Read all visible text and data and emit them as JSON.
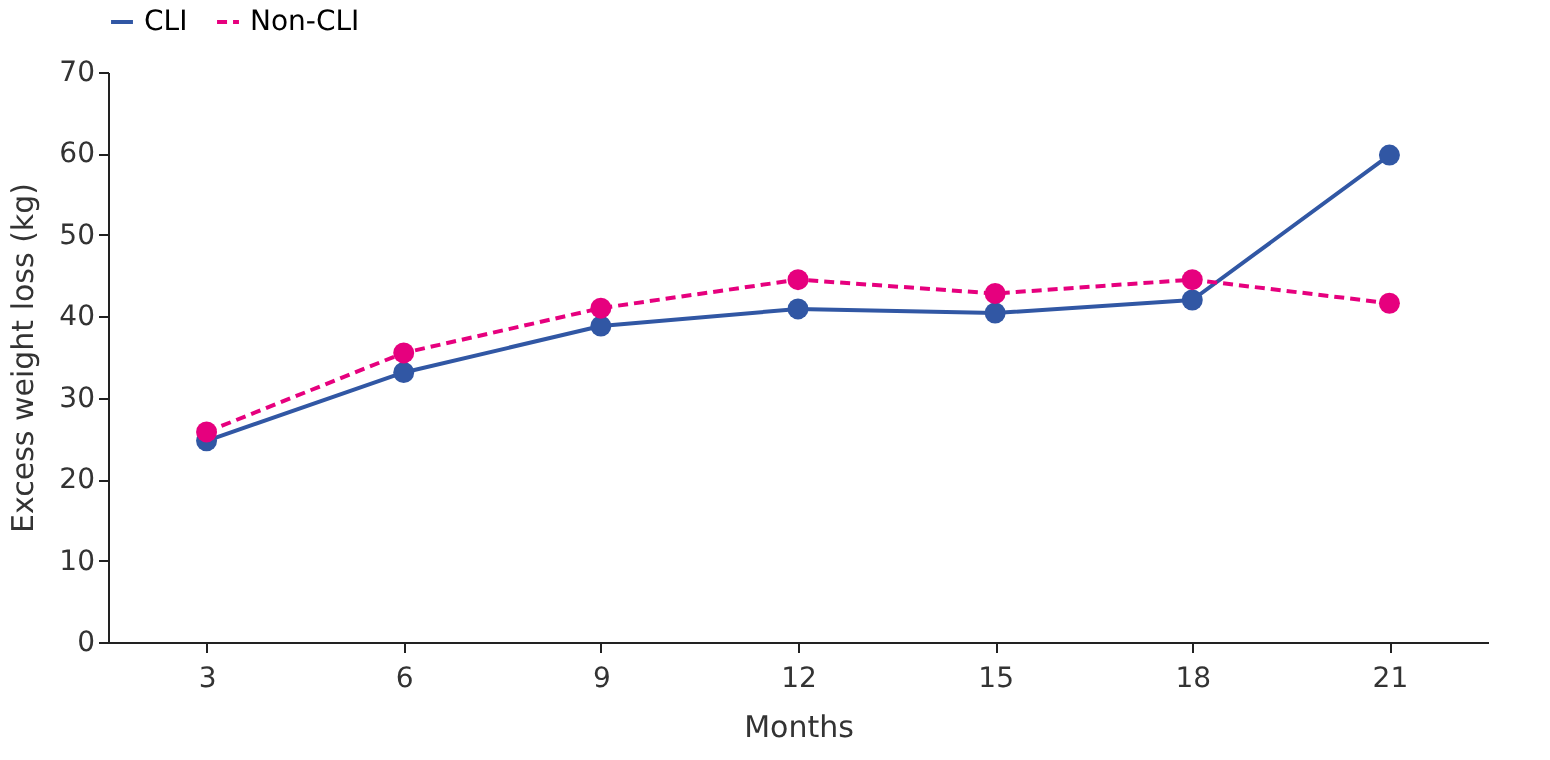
{
  "chart_data": {
    "type": "line",
    "xlabel": "Months",
    "ylabel": "Excess weight loss (kg)",
    "categories": [
      "3",
      "6",
      "9",
      "12",
      "15",
      "18",
      "21"
    ],
    "ylim": [
      0,
      70
    ],
    "yticks": [
      0,
      10,
      20,
      30,
      40,
      50,
      60,
      70
    ],
    "grid": false,
    "legend": "top",
    "marker": "circle",
    "series": [
      {
        "name": "CLI",
        "color": "#3157a4",
        "line_style": "solid",
        "values": [
          24.7,
          33.1,
          38.8,
          40.9,
          40.4,
          42.0,
          59.8
        ]
      },
      {
        "name": "Non-CLI",
        "color": "#e6007e",
        "line_style": "dashed",
        "values": [
          25.8,
          35.5,
          41.0,
          44.5,
          42.8,
          44.5,
          41.6
        ]
      }
    ]
  }
}
